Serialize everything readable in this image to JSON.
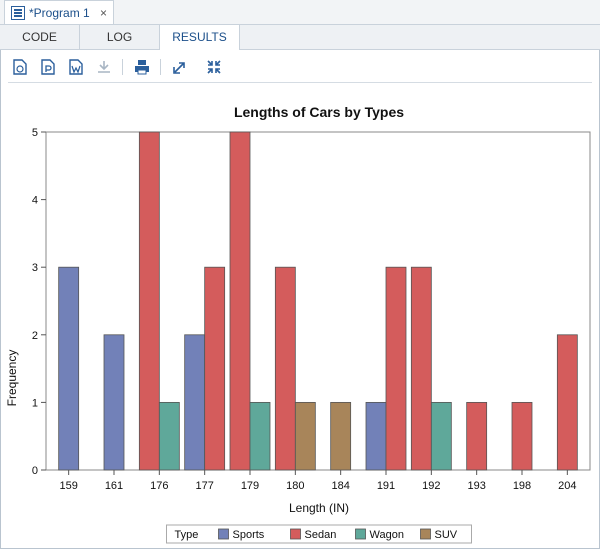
{
  "window": {
    "tab_title": "*Program 1",
    "close_glyph": "×",
    "icon": "sas-program-icon"
  },
  "subtabs": [
    {
      "label": "CODE",
      "active": false
    },
    {
      "label": "LOG",
      "active": false
    },
    {
      "label": "RESULTS",
      "active": true
    }
  ],
  "toolbar": {
    "icons": [
      "html-download-icon",
      "pdf-download-icon",
      "rtf-download-icon",
      "save-disabled-icon",
      "print-icon",
      "open-in-new-window-icon",
      "collapse-icon"
    ],
    "accent": "#2b5f9c"
  },
  "chart_data": {
    "type": "bar",
    "title": "Lengths of Cars by Types",
    "xlabel": "Length (IN)",
    "ylabel": "Frequency",
    "ylim": [
      0,
      5
    ],
    "yticks": [
      0,
      1,
      2,
      3,
      4,
      5
    ],
    "categories": [
      "159",
      "161",
      "176",
      "177",
      "179",
      "180",
      "184",
      "191",
      "192",
      "193",
      "198",
      "204"
    ],
    "series": [
      {
        "name": "Sports",
        "color": "#7281b8",
        "values": [
          3,
          2,
          0,
          2,
          0,
          0,
          0,
          1,
          0,
          0,
          0,
          0
        ]
      },
      {
        "name": "Sedan",
        "color": "#d45c5c",
        "values": [
          0,
          0,
          5,
          3,
          5,
          3,
          0,
          3,
          3,
          1,
          1,
          2
        ]
      },
      {
        "name": "Wagon",
        "color": "#5fa89a",
        "values": [
          0,
          0,
          1,
          0,
          1,
          0,
          0,
          0,
          1,
          0,
          0,
          0
        ]
      },
      {
        "name": "SUV",
        "color": "#a8855a",
        "values": [
          0,
          0,
          0,
          0,
          0,
          1,
          1,
          0,
          0,
          0,
          0,
          0
        ]
      }
    ],
    "legend_title": "Type",
    "legend_position": "bottom",
    "grid": false
  }
}
